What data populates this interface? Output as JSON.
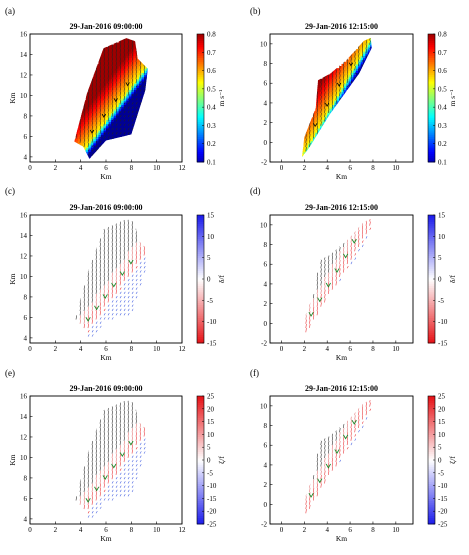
{
  "chart_data": [
    {
      "type": "heatmap",
      "panel_label": "(a)",
      "title": "29-Jan-2016 09:00:00",
      "xlabel": "Km",
      "ylabel": "Km",
      "xlim": [
        0,
        12
      ],
      "ylim": [
        3.5,
        16
      ],
      "xticks": [
        0,
        2,
        4,
        6,
        8,
        10,
        12
      ],
      "yticks": [
        4,
        6,
        8,
        10,
        12,
        14,
        16
      ],
      "colorbar": {
        "label": "m s⁻¹",
        "min": 0.1,
        "max": 0.8,
        "ticks": [
          0.1,
          0.2,
          0.3,
          0.4,
          0.5,
          0.6,
          0.7,
          0.8
        ],
        "colormap": "jet"
      },
      "region": [
        [
          3.5,
          5.5
        ],
        [
          4.5,
          10.2
        ],
        [
          5.8,
          14.6
        ],
        [
          7.6,
          15.6
        ],
        [
          8.3,
          15.3
        ],
        [
          8.5,
          13.6
        ],
        [
          9.3,
          12.6
        ],
        [
          9.1,
          10.5
        ],
        [
          8.0,
          6.2
        ],
        [
          6.0,
          5.6
        ],
        [
          4.7,
          3.8
        ],
        [
          4.2,
          5.0
        ]
      ],
      "ridge": [
        [
          4.0,
          4.2
        ],
        [
          9.2,
          12.8
        ]
      ]
    },
    {
      "type": "heatmap",
      "panel_label": "(b)",
      "title": "29-Jan-2016 12:15:00",
      "xlabel": "Km",
      "ylabel": "",
      "xlim": [
        -1,
        11.5
      ],
      "ylim": [
        -2,
        11
      ],
      "xticks": [
        0,
        2,
        4,
        6,
        8,
        10
      ],
      "yticks": [
        -2,
        0,
        2,
        4,
        6,
        8,
        10
      ],
      "colorbar": {
        "label": "m s⁻¹",
        "min": 0.1,
        "max": 0.8,
        "ticks": [
          0.1,
          0.2,
          0.3,
          0.4,
          0.5,
          0.6,
          0.7,
          0.8
        ],
        "colormap": "jet"
      },
      "region": [
        [
          1.8,
          -1.5
        ],
        [
          2.0,
          0.5
        ],
        [
          3.0,
          3.5
        ],
        [
          3.2,
          6.3
        ],
        [
          4.3,
          7.0
        ],
        [
          5.8,
          8.5
        ],
        [
          7.2,
          10.3
        ],
        [
          7.8,
          10.6
        ],
        [
          7.9,
          9.6
        ],
        [
          6.8,
          7.0
        ],
        [
          4.2,
          2.8
        ],
        [
          2.4,
          -0.6
        ]
      ],
      "ridge": [
        [
          1.9,
          -1.2
        ],
        [
          7.7,
          10.2
        ]
      ]
    },
    {
      "type": "quiver",
      "panel_label": "(c)",
      "title": "29-Jan-2016 09:00:00",
      "xlabel": "Km",
      "ylabel": "Km",
      "xlim": [
        0,
        12
      ],
      "ylim": [
        3.5,
        16
      ],
      "xticks": [
        0,
        2,
        4,
        6,
        8,
        10,
        12
      ],
      "yticks": [
        4,
        6,
        8,
        10,
        12,
        14,
        16
      ],
      "colorbar": {
        "label": "δ/f",
        "min": -15,
        "max": 15,
        "ticks": [
          -15,
          -10,
          -5,
          0,
          5,
          10,
          15
        ],
        "colormap": "red-white-blue"
      },
      "region": [
        [
          3.5,
          5.5
        ],
        [
          4.5,
          10.2
        ],
        [
          5.8,
          14.6
        ],
        [
          7.6,
          15.6
        ],
        [
          8.3,
          15.3
        ],
        [
          8.5,
          13.6
        ],
        [
          9.3,
          12.6
        ],
        [
          9.1,
          10.5
        ],
        [
          8.0,
          6.2
        ],
        [
          6.0,
          5.6
        ],
        [
          4.7,
          3.8
        ],
        [
          4.2,
          5.0
        ]
      ],
      "ridge": [
        [
          4.0,
          4.2
        ],
        [
          9.2,
          12.8
        ]
      ],
      "ridge_color": "#e8292c",
      "flank_color": "#3f5be0"
    },
    {
      "type": "quiver",
      "panel_label": "(d)",
      "title": "29-Jan-2016 12:15:00",
      "xlabel": "Km",
      "ylabel": "",
      "xlim": [
        -1,
        11.5
      ],
      "ylim": [
        -2,
        11
      ],
      "xticks": [
        0,
        2,
        4,
        6,
        8,
        10
      ],
      "yticks": [
        -2,
        0,
        2,
        4,
        6,
        8,
        10
      ],
      "colorbar": {
        "label": "δ/f",
        "min": -15,
        "max": 15,
        "ticks": [
          -15,
          -10,
          -5,
          0,
          5,
          10,
          15
        ],
        "colormap": "red-white-blue"
      },
      "region": [
        [
          1.8,
          -1.5
        ],
        [
          2.0,
          0.5
        ],
        [
          3.0,
          3.5
        ],
        [
          3.2,
          6.3
        ],
        [
          4.3,
          7.0
        ],
        [
          5.8,
          8.5
        ],
        [
          7.2,
          10.3
        ],
        [
          7.8,
          10.6
        ],
        [
          7.9,
          9.6
        ],
        [
          6.8,
          7.0
        ],
        [
          4.2,
          2.8
        ],
        [
          2.4,
          -0.6
        ]
      ],
      "ridge": [
        [
          1.9,
          -1.2
        ],
        [
          7.7,
          10.2
        ]
      ],
      "ridge_color": "#e8292c",
      "flank_color": "#3f5be0"
    },
    {
      "type": "quiver",
      "panel_label": "(e)",
      "title": "29-Jan-2016 09:00:00",
      "xlabel": "Km",
      "ylabel": "Km",
      "xlim": [
        0,
        12
      ],
      "ylim": [
        3.5,
        16
      ],
      "xticks": [
        0,
        2,
        4,
        6,
        8,
        10,
        12
      ],
      "yticks": [
        4,
        6,
        8,
        10,
        12,
        14,
        16
      ],
      "colorbar": {
        "label": "ζ/f",
        "min": -25,
        "max": 25,
        "ticks": [
          -25,
          -20,
          -15,
          -10,
          -5,
          0,
          5,
          10,
          15,
          20,
          25
        ],
        "colormap": "blue-white-red"
      },
      "region": [
        [
          3.5,
          5.5
        ],
        [
          4.5,
          10.2
        ],
        [
          5.8,
          14.6
        ],
        [
          7.6,
          15.6
        ],
        [
          8.3,
          15.3
        ],
        [
          8.5,
          13.6
        ],
        [
          9.3,
          12.6
        ],
        [
          9.1,
          10.5
        ],
        [
          8.0,
          6.2
        ],
        [
          6.0,
          5.6
        ],
        [
          4.7,
          3.8
        ],
        [
          4.2,
          5.0
        ]
      ],
      "ridge": [
        [
          4.0,
          4.2
        ],
        [
          9.2,
          12.8
        ]
      ],
      "ridge_color": "#e8292c",
      "flank_color": "#3f5be0"
    },
    {
      "type": "quiver",
      "panel_label": "(f)",
      "title": "29-Jan-2016 12:15:00",
      "xlabel": "Km",
      "ylabel": "",
      "xlim": [
        -1,
        11.5
      ],
      "ylim": [
        -2,
        11
      ],
      "xticks": [
        0,
        2,
        4,
        6,
        8,
        10
      ],
      "yticks": [
        -2,
        0,
        2,
        4,
        6,
        8,
        10
      ],
      "colorbar": {
        "label": "ζ/f",
        "min": -25,
        "max": 25,
        "ticks": [
          -25,
          -20,
          -15,
          -10,
          -5,
          0,
          5,
          10,
          15,
          20,
          25
        ],
        "colormap": "blue-white-red"
      },
      "region": [
        [
          1.8,
          -1.5
        ],
        [
          2.0,
          0.5
        ],
        [
          3.0,
          3.5
        ],
        [
          3.2,
          6.3
        ],
        [
          4.3,
          7.0
        ],
        [
          5.8,
          8.5
        ],
        [
          7.2,
          10.3
        ],
        [
          7.8,
          10.6
        ],
        [
          7.9,
          9.6
        ],
        [
          6.8,
          7.0
        ],
        [
          4.2,
          2.8
        ],
        [
          2.4,
          -0.6
        ]
      ],
      "ridge": [
        [
          1.9,
          -1.2
        ],
        [
          7.7,
          10.2
        ]
      ],
      "ridge_color": "#e8292c",
      "flank_color": "#3f5be0"
    }
  ]
}
